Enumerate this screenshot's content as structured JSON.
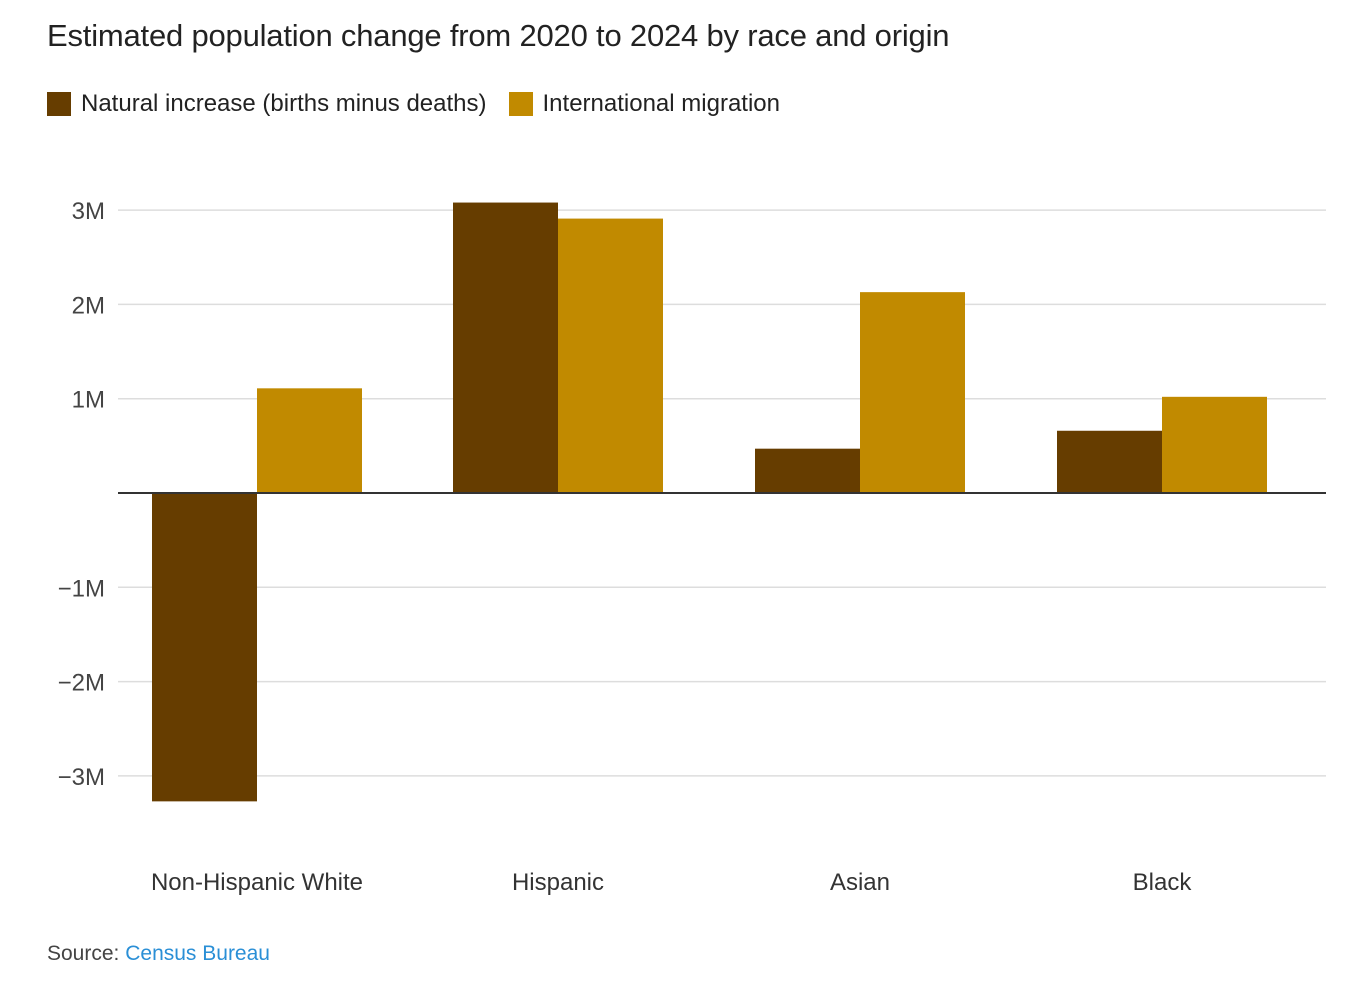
{
  "source_label": "Source: ",
  "source_link": "Census Bureau",
  "colors": {
    "natural": "#663d00",
    "migration": "#c18a00",
    "grid": "#dddddd",
    "axis": "#333333"
  },
  "chart_data": {
    "type": "bar",
    "title": "Estimated population change from 2020 to 2024 by race and origin",
    "categories": [
      "Non-Hispanic White",
      "Hispanic",
      "Asian",
      "Black"
    ],
    "series": [
      {
        "name": "Natural increase (births minus deaths)",
        "values": [
          -3.27,
          3.08,
          0.47,
          0.66
        ]
      },
      {
        "name": "International migration",
        "values": [
          1.11,
          2.91,
          2.13,
          1.02
        ]
      }
    ],
    "y_ticks": [
      {
        "value": 3,
        "label": "3M"
      },
      {
        "value": 2,
        "label": "2M"
      },
      {
        "value": 1,
        "label": "1M"
      },
      {
        "value": -1,
        "label": "−1M"
      },
      {
        "value": -2,
        "label": "−2M"
      },
      {
        "value": -3,
        "label": "−3M"
      }
    ],
    "ylim": [
      -3.5,
      3.5
    ],
    "grid": true,
    "legend_position": "top-left",
    "xlabel": "",
    "ylabel": ""
  }
}
